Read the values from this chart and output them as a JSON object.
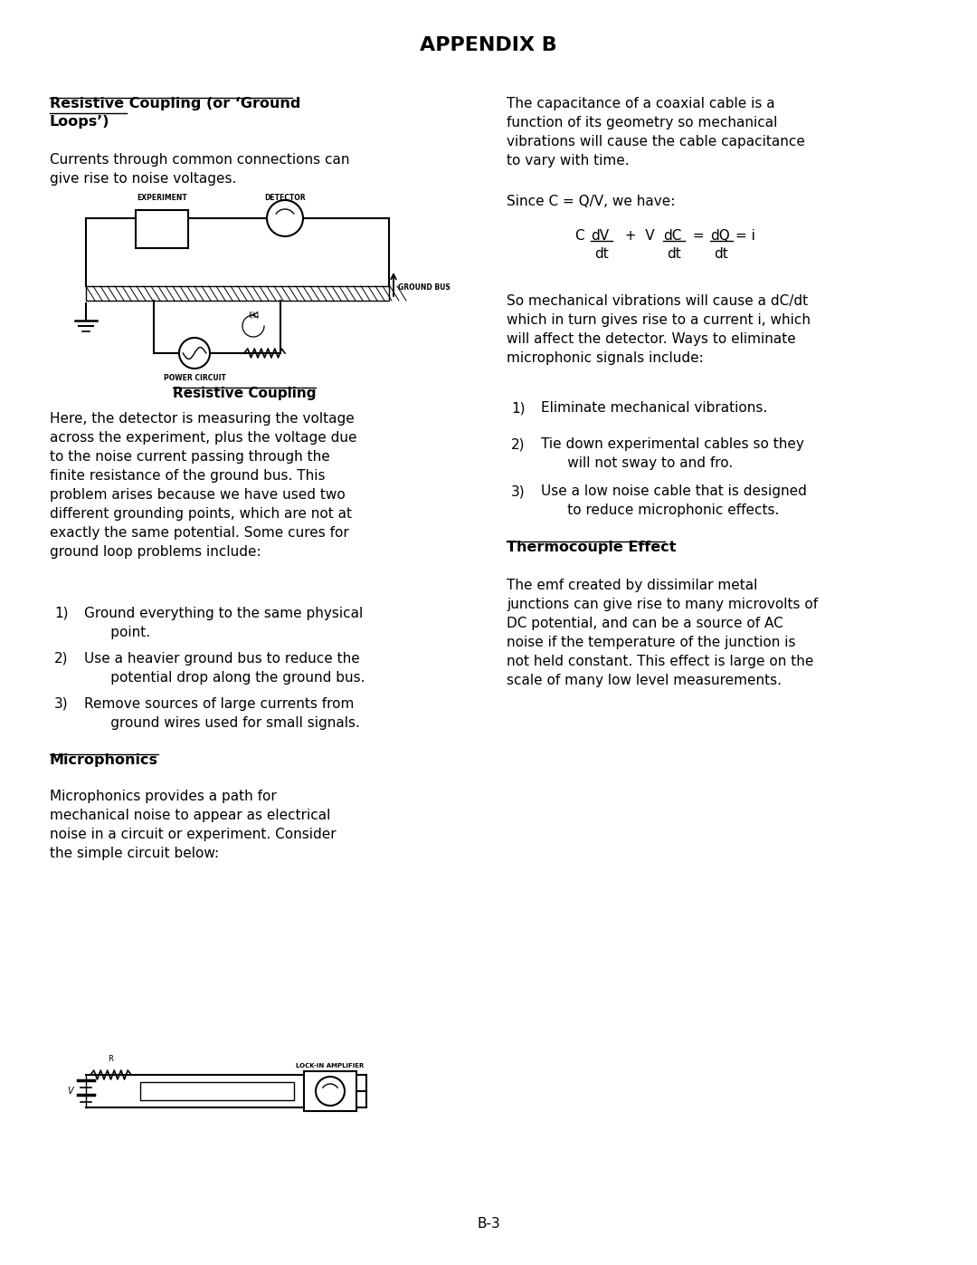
{
  "title": "APPENDIX B",
  "bg_color": "#ffffff",
  "text_color": "#000000",
  "page_number": "B-3",
  "left_col": {
    "section1_heading": "Resistive Coupling (or ‘Ground\nLoops’)",
    "section1_intro": "Currents through common connections can\ngive rise to noise voltages.",
    "diagram1_caption": "Resistive Coupling",
    "section1_body": "Here, the detector is measuring the voltage\nacross the experiment, plus the voltage due\nto the noise current passing through the\nfinite resistance of the ground bus. This\nproblem arises because we have used two\ndifferent grounding points, which are not at\nexactly the same potential. Some cures for\nground loop problems include:",
    "list1": [
      "Ground everything to the same physical\n      point.",
      "Use a heavier ground bus to reduce the\n      potential drop along the ground bus.",
      "Remove sources of large currents from\n      ground wires used for small signals."
    ],
    "section2_heading": "Microphonics",
    "section2_body": "Microphonics provides a path for\nmechanical noise to appear as electrical\nnoise in a circuit or experiment. Consider\nthe simple circuit below:"
  },
  "right_col": {
    "para1": "The capacitance of a coaxial cable is a\nfunction of its geometry so mechanical\nvibrations will cause the cable capacitance\nto vary with time.",
    "para2": "Since C = Q/V, we have:",
    "para3": "So mechanical vibrations will cause a dC/dt\nwhich in turn gives rise to a current i, which\nwill affect the detector. Ways to eliminate\nmicrophonic signals include:",
    "list2": [
      "Eliminate mechanical vibrations.",
      "Tie down experimental cables so they\n      will not sway to and fro.",
      "Use a low noise cable that is designed\n      to reduce microphonic effects."
    ],
    "section3_heading": "Thermocouple Effect",
    "section3_body": "The emf created by dissimilar metal\njunctions can give rise to many microvolts of\nDC potential, and can be a source of AC\nnoise if the temperature of the junction is\nnot held constant. This effect is large on the\nscale of many low level measurements."
  }
}
